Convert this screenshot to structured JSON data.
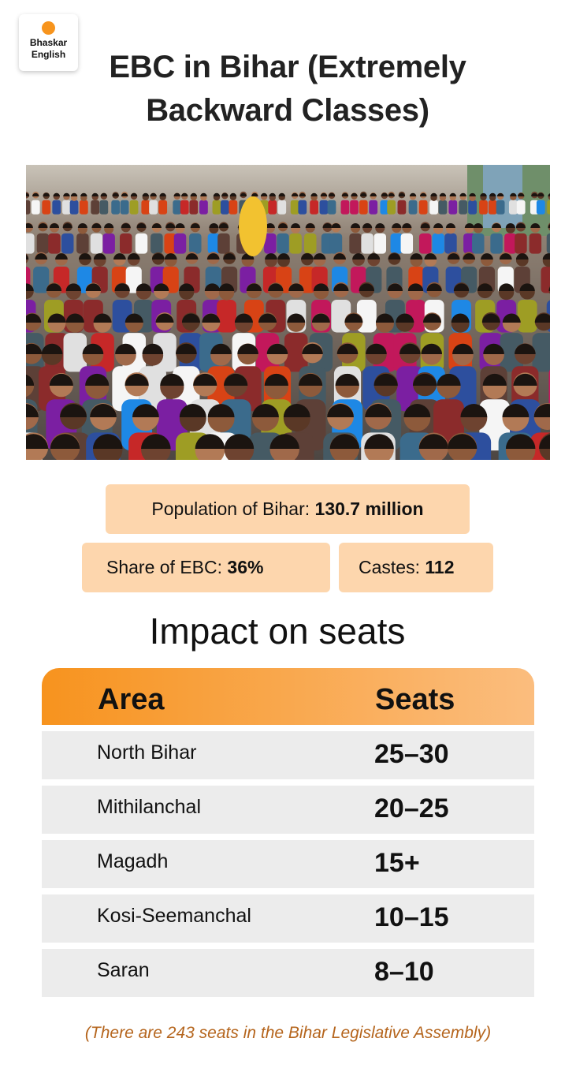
{
  "brand": {
    "line1": "Bhaskar",
    "line2": "English",
    "accent": "#f7941d"
  },
  "title": "EBC in Bihar (Extremely Backward Classes)",
  "photo": {
    "description_icon": "crowd-photo"
  },
  "stats": {
    "population": {
      "label": "Population of Bihar:",
      "value": "130.7 million"
    },
    "ebc_share": {
      "label": "Share of EBC:",
      "value": "36%"
    },
    "castes": {
      "label": "Castes:",
      "value": "112"
    }
  },
  "subtitle": "Impact on seats",
  "table": {
    "headers": {
      "area": "Area",
      "seats": "Seats"
    },
    "rows": [
      {
        "area": "North Bihar",
        "seats": "25–30"
      },
      {
        "area": "Mithilanchal",
        "seats": "20–25"
      },
      {
        "area": "Magadh",
        "seats": "15+"
      },
      {
        "area": "Kosi-Seemanchal",
        "seats": "10–15"
      },
      {
        "area": "Saran",
        "seats": "8–10"
      }
    ]
  },
  "footnote": "(There are 243 seats in the Bihar Legislative Assembly)",
  "colors": {
    "stat_box": "#fdd6ad",
    "header_gradient_start": "#f7931e",
    "header_gradient_end": "#fbbd7e",
    "row_bg": "#ececec",
    "footnote": "#b5651d"
  }
}
